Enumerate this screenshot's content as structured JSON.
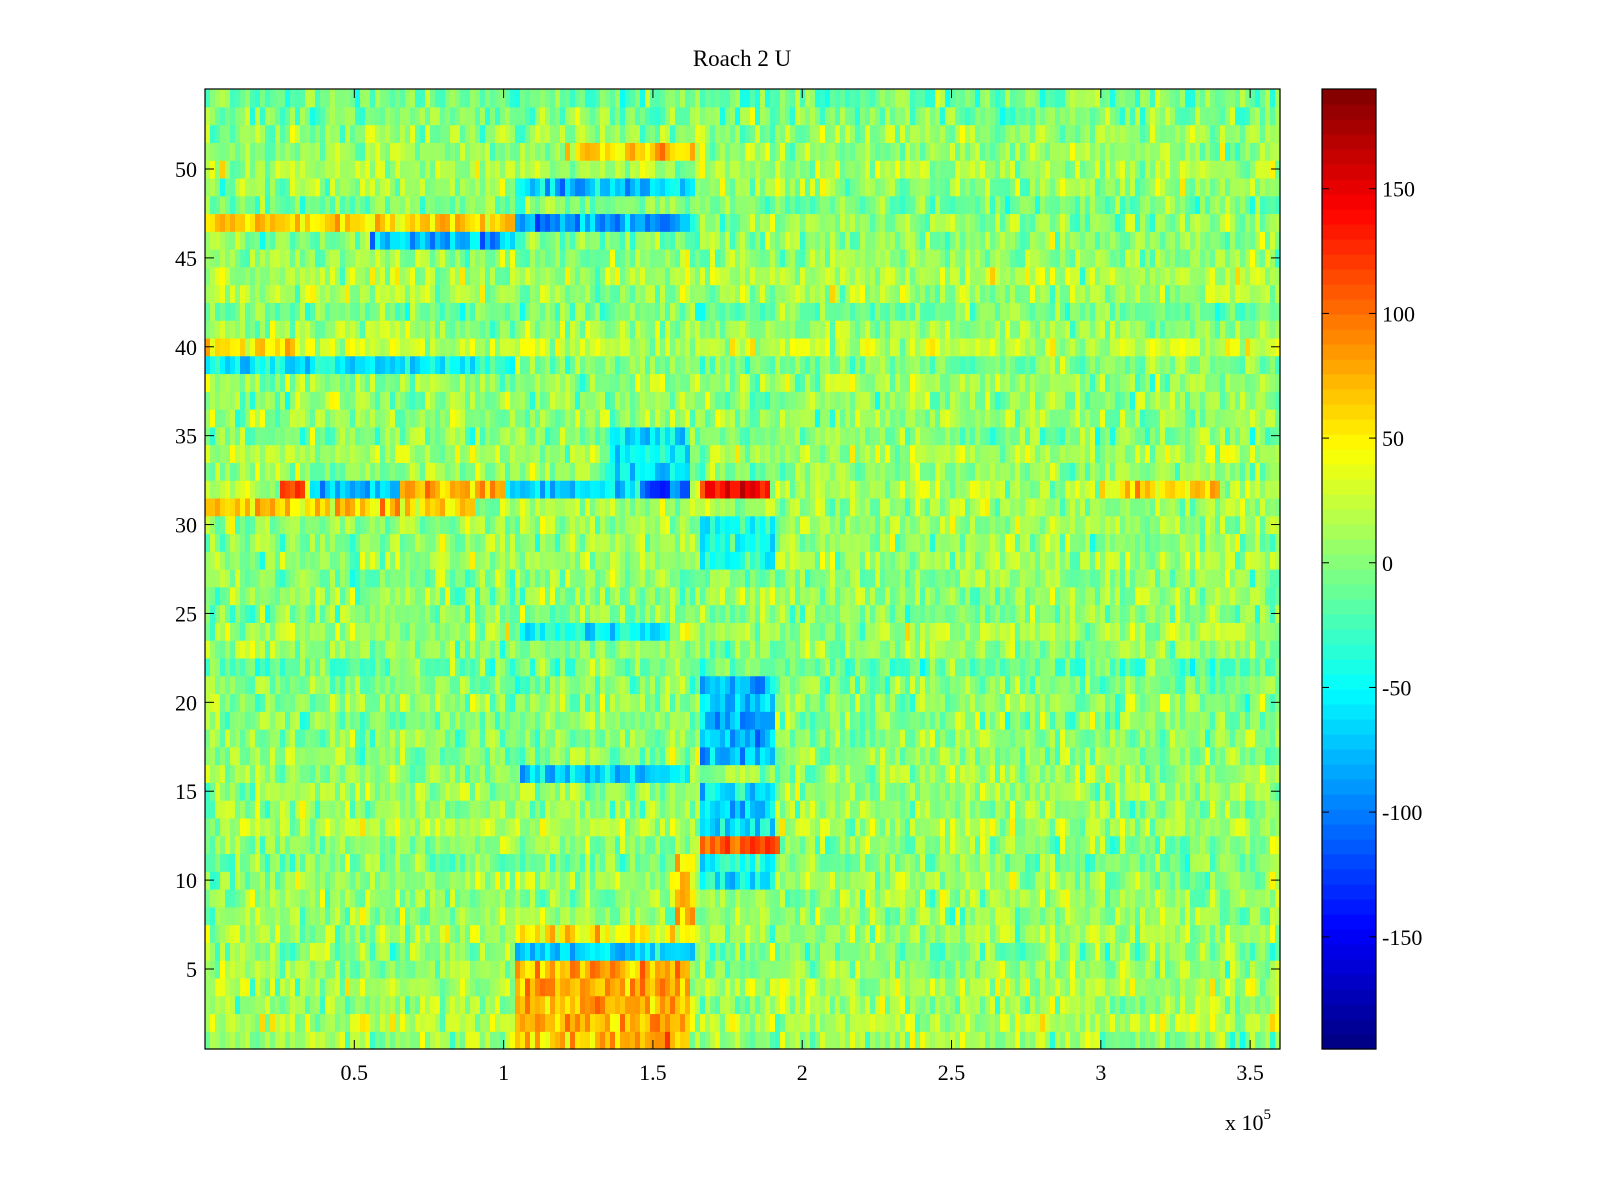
{
  "chart_data": {
    "type": "heatmap",
    "title": "Roach 2 U",
    "xlabel": "",
    "ylabel": "",
    "x_exponent_label": "x 10",
    "x_exponent": "5",
    "xlim": [
      0,
      3.6
    ],
    "ylim": [
      0.5,
      54.5
    ],
    "x_ticks": [
      0.5,
      1,
      1.5,
      2,
      2.5,
      3,
      3.5
    ],
    "x_tick_labels": [
      "0.5",
      "1",
      "1.5",
      "2",
      "2.5",
      "3",
      "3.5"
    ],
    "y_ticks": [
      5,
      10,
      15,
      20,
      25,
      30,
      35,
      40,
      45,
      50
    ],
    "y_tick_labels": [
      "5",
      "10",
      "15",
      "20",
      "25",
      "30",
      "35",
      "40",
      "45",
      "50"
    ],
    "rows": 54,
    "colormap": "jet",
    "colorbar": {
      "clim": [
        -195,
        190
      ],
      "ticks": [
        -150,
        -100,
        -50,
        0,
        50,
        100,
        150
      ],
      "tick_labels": [
        "-150",
        "-100",
        "-50",
        "0",
        "50",
        "100",
        "150"
      ],
      "placement": "right"
    },
    "background_level": 5,
    "noise_amplitude": 18,
    "regions": [
      {
        "rows": [
          1,
          5
        ],
        "x": [
          1.03,
          1.63
        ],
        "value": 75
      },
      {
        "rows": [
          6,
          6
        ],
        "x": [
          1.03,
          1.64
        ],
        "value": -70
      },
      {
        "rows": [
          7,
          7
        ],
        "x": [
          1.03,
          1.64
        ],
        "value": 55
      },
      {
        "rows": [
          8,
          11
        ],
        "x": [
          1.57,
          1.64
        ],
        "value": 70
      },
      {
        "rows": [
          10,
          11
        ],
        "x": [
          1.66,
          1.91
        ],
        "value": -45
      },
      {
        "rows": [
          12,
          12
        ],
        "x": [
          1.66,
          1.92
        ],
        "value": 105
      },
      {
        "rows": [
          13,
          15
        ],
        "x": [
          1.66,
          1.91
        ],
        "value": -65
      },
      {
        "rows": [
          16,
          16
        ],
        "x": [
          1.05,
          1.62
        ],
        "value": -65
      },
      {
        "rows": [
          17,
          21
        ],
        "x": [
          1.66,
          1.91
        ],
        "value": -75
      },
      {
        "rows": [
          24,
          24
        ],
        "x": [
          1.05,
          1.55
        ],
        "value": -50
      },
      {
        "rows": [
          28,
          30
        ],
        "x": [
          1.66,
          1.91
        ],
        "value": -45
      },
      {
        "rows": [
          31,
          31
        ],
        "x": [
          0.0,
          0.9
        ],
        "value": 65
      },
      {
        "rows": [
          32,
          32
        ],
        "x": [
          0.25,
          0.33
        ],
        "value": 110
      },
      {
        "rows": [
          32,
          32
        ],
        "x": [
          0.35,
          0.65
        ],
        "value": -75
      },
      {
        "rows": [
          32,
          32
        ],
        "x": [
          0.65,
          1.0
        ],
        "value": 70
      },
      {
        "rows": [
          32,
          32
        ],
        "x": [
          1.0,
          1.45
        ],
        "value": -60
      },
      {
        "rows": [
          32,
          32
        ],
        "x": [
          1.45,
          1.63
        ],
        "value": -110
      },
      {
        "rows": [
          32,
          32
        ],
        "x": [
          1.66,
          1.9
        ],
        "value": 150
      },
      {
        "rows": [
          32,
          32
        ],
        "x": [
          3.0,
          3.4
        ],
        "value": 55
      },
      {
        "rows": [
          33,
          35
        ],
        "x": [
          1.35,
          1.62
        ],
        "value": -55
      },
      {
        "rows": [
          39,
          39
        ],
        "x": [
          0.0,
          1.03
        ],
        "value": -50
      },
      {
        "rows": [
          40,
          40
        ],
        "x": [
          0.0,
          0.3
        ],
        "value": 60
      },
      {
        "rows": [
          46,
          46
        ],
        "x": [
          0.55,
          1.03
        ],
        "value": -75
      },
      {
        "rows": [
          47,
          47
        ],
        "x": [
          0.0,
          1.03
        ],
        "value": 60
      },
      {
        "rows": [
          47,
          47
        ],
        "x": [
          1.03,
          1.63
        ],
        "value": -85
      },
      {
        "rows": [
          49,
          49
        ],
        "x": [
          1.03,
          1.64
        ],
        "value": -70
      },
      {
        "rows": [
          51,
          51
        ],
        "x": [
          1.2,
          1.64
        ],
        "value": 60
      }
    ]
  }
}
